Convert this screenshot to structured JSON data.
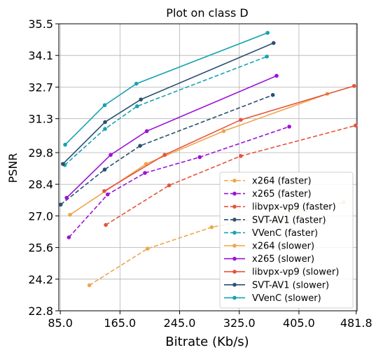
{
  "chart_data": {
    "type": "line",
    "title": "Plot on class D",
    "xlabel": "Bitrate (Kb/s)",
    "ylabel": "PSNR",
    "xlim": [
      83,
      483
    ],
    "ylim": [
      22.8,
      35.5
    ],
    "xticks": [
      85.0,
      165.0,
      245.0,
      325.0,
      405.0,
      481.8
    ],
    "xtick_labels": [
      "85.0",
      "165.0",
      "245.0",
      "325.0",
      "405.0",
      "481.8"
    ],
    "yticks": [
      22.8,
      24.2,
      25.6,
      27.0,
      28.4,
      29.8,
      31.3,
      32.7,
      34.1,
      35.5
    ],
    "ytick_labels": [
      "22.8",
      "24.2",
      "25.6",
      "27.0",
      "28.4",
      "29.8",
      "31.3",
      "32.7",
      "34.1",
      "35.5"
    ],
    "grid": true,
    "legend_position": "lower-right",
    "series": [
      {
        "name": "x264 (faster)",
        "color": "#F0A54B",
        "dashed": true,
        "points": [
          [
            124,
            23.93
          ],
          [
            202,
            25.55
          ],
          [
            288,
            26.5
          ],
          [
            465,
            27.6
          ]
        ]
      },
      {
        "name": "x265 (faster)",
        "color": "#9B12D6",
        "dashed": true,
        "points": [
          [
            96.5,
            26.05
          ],
          [
            148.5,
            27.95
          ],
          [
            198.5,
            28.9
          ],
          [
            272,
            29.6
          ],
          [
            392,
            30.95
          ]
        ]
      },
      {
        "name": "libvpx-vp9 (faster)",
        "color": "#E5533D",
        "dashed": true,
        "points": [
          [
            146,
            26.6
          ],
          [
            231,
            28.35
          ],
          [
            327,
            29.65
          ],
          [
            481,
            31.0
          ]
        ]
      },
      {
        "name": "SVT-AV1 (faster)",
        "color": "#2A4F73",
        "dashed": true,
        "points": [
          [
            85.5,
            27.5
          ],
          [
            144.5,
            29.05
          ],
          [
            192,
            30.1
          ],
          [
            370,
            32.35
          ]
        ]
      },
      {
        "name": "VVenC (faster)",
        "color": "#17A2B0",
        "dashed": true,
        "points": [
          [
            91,
            29.25
          ],
          [
            145,
            30.85
          ],
          [
            188,
            31.85
          ],
          [
            362,
            34.05
          ]
        ]
      },
      {
        "name": "x264 (slower)",
        "color": "#F0A54B",
        "dashed": false,
        "points": [
          [
            98,
            27.05
          ],
          [
            200,
            29.3
          ],
          [
            304,
            30.75
          ],
          [
            443,
            32.4
          ]
        ]
      },
      {
        "name": "x265 (slower)",
        "color": "#9B12D6",
        "dashed": false,
        "points": [
          [
            93.5,
            27.8
          ],
          [
            152.5,
            29.7
          ],
          [
            201,
            30.75
          ],
          [
            375,
            33.2
          ]
        ]
      },
      {
        "name": "libvpx-vp9 (slower)",
        "color": "#E5533D",
        "dashed": false,
        "points": [
          [
            144,
            28.1
          ],
          [
            225,
            29.7
          ],
          [
            327,
            31.25
          ],
          [
            479,
            32.75
          ]
        ]
      },
      {
        "name": "SVT-AV1 (slower)",
        "color": "#2A4F73",
        "dashed": false,
        "points": [
          [
            88.5,
            29.3
          ],
          [
            145,
            31.15
          ],
          [
            193,
            32.15
          ],
          [
            371,
            34.65
          ]
        ]
      },
      {
        "name": "VVenC (slower)",
        "color": "#17A2B0",
        "dashed": false,
        "points": [
          [
            91.5,
            30.15
          ],
          [
            144.5,
            31.9
          ],
          [
            187,
            32.85
          ],
          [
            363,
            35.1
          ]
        ]
      }
    ]
  }
}
